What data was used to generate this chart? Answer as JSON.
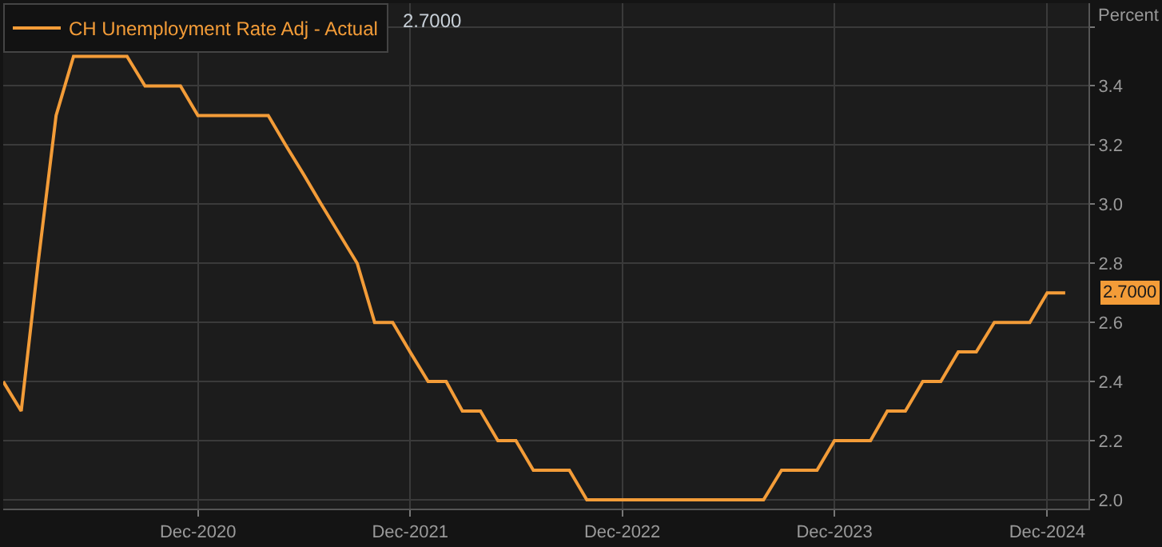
{
  "chart_data": {
    "type": "line",
    "ylabel": "Percent",
    "legend": "top left",
    "grid": true,
    "marker": "none",
    "line_style": "solid",
    "x": [
      "2020-01",
      "2020-02",
      "2020-03",
      "2020-04",
      "2020-05",
      "2020-06",
      "2020-07",
      "2020-08",
      "2020-09",
      "2020-10",
      "2020-11",
      "2020-12",
      "2021-01",
      "2021-02",
      "2021-03",
      "2021-04",
      "2021-05",
      "2021-06",
      "2021-07",
      "2021-08",
      "2021-09",
      "2021-10",
      "2021-11",
      "2021-12",
      "2022-01",
      "2022-02",
      "2022-03",
      "2022-04",
      "2022-05",
      "2022-06",
      "2022-07",
      "2022-08",
      "2022-09",
      "2022-10",
      "2022-11",
      "2022-12",
      "2023-01",
      "2023-02",
      "2023-03",
      "2023-04",
      "2023-05",
      "2023-06",
      "2023-07",
      "2023-08",
      "2023-09",
      "2023-10",
      "2023-11",
      "2023-12",
      "2024-01",
      "2024-02",
      "2024-03",
      "2024-04",
      "2024-05",
      "2024-06",
      "2024-07",
      "2024-08",
      "2024-09",
      "2024-10",
      "2024-11",
      "2024-12",
      "2025-01"
    ],
    "series": [
      {
        "name": "CH Unemployment Rate Adj - Actual",
        "color": "#f39c38",
        "values": [
          2.4,
          2.3,
          2.8,
          3.3,
          3.5,
          3.5,
          3.5,
          3.5,
          3.4,
          3.4,
          3.4,
          3.3,
          3.3,
          3.3,
          3.3,
          3.3,
          3.2,
          3.1,
          3.0,
          2.9,
          2.8,
          2.6,
          2.6,
          2.5,
          2.4,
          2.4,
          2.3,
          2.3,
          2.2,
          2.2,
          2.1,
          2.1,
          2.1,
          2.0,
          2.0,
          2.0,
          2.0,
          2.0,
          2.0,
          2.0,
          2.0,
          2.0,
          2.0,
          2.0,
          2.1,
          2.1,
          2.1,
          2.2,
          2.2,
          2.2,
          2.3,
          2.3,
          2.4,
          2.4,
          2.5,
          2.5,
          2.6,
          2.6,
          2.6,
          2.7,
          2.7
        ]
      }
    ],
    "annotations": [
      "2.7000",
      {
        "text": "2.7000",
        "x": "2025-01",
        "y": 2.7
      }
    ],
    "xlim": [
      "2020-01",
      "2025-02-10"
    ],
    "xticks": [
      {
        "value": "2020-12",
        "label": "Dec-2020"
      },
      {
        "value": "2021-12",
        "label": "Dec-2021"
      },
      {
        "value": "2022-12",
        "label": "Dec-2022"
      },
      {
        "value": "2023-12",
        "label": "Dec-2023"
      },
      {
        "value": "2024-12",
        "label": "Dec-2024"
      }
    ],
    "ylim": [
      1.97,
      3.68
    ],
    "yticks": [
      {
        "value": 2.0,
        "label": "2.0"
      },
      {
        "value": 2.2,
        "label": "2.2"
      },
      {
        "value": 2.4,
        "label": "2.4"
      },
      {
        "value": 2.6,
        "label": "2.6"
      },
      {
        "value": 2.8,
        "label": "2.8"
      },
      {
        "value": 3.0,
        "label": "3.0"
      },
      {
        "value": 3.2,
        "label": "3.2"
      },
      {
        "value": 3.4,
        "label": "3.4"
      },
      {
        "value": 3.6,
        "label": null
      }
    ]
  }
}
